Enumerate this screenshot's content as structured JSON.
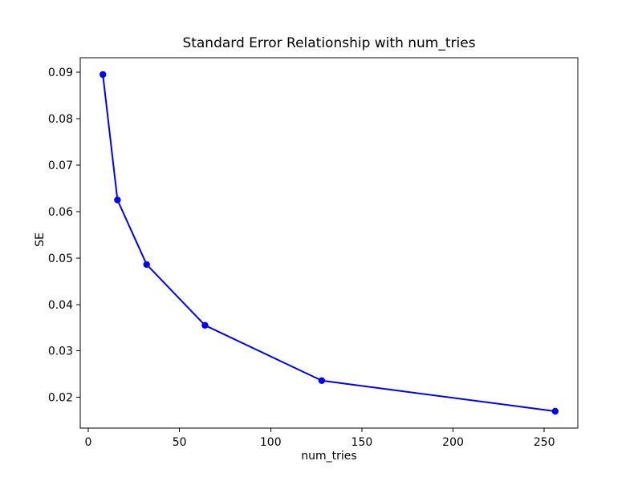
{
  "figure": {
    "background_color": "#ffffff",
    "spine_color": "#000000",
    "text_color": "#000000"
  },
  "chart_data": {
    "type": "line",
    "title": "Standard Error Relationship with num_tries",
    "xlabel": "num_tries",
    "ylabel": "SE",
    "x": [
      8,
      16,
      32,
      64,
      128,
      256
    ],
    "y": [
      0.0895,
      0.0625,
      0.0486,
      0.0355,
      0.0236,
      0.017
    ],
    "series_name": "SE",
    "line_color": "#0000ff",
    "marker": "circle",
    "marker_color": "#0000ff",
    "marker_radius": 4.2,
    "line_width": 2,
    "xlim": [
      -4.4,
      268.4
    ],
    "ylim": [
      0.013375,
      0.093125
    ],
    "xticks": [
      0,
      50,
      100,
      150,
      200,
      250
    ],
    "xtick_labels": [
      "0",
      "50",
      "100",
      "150",
      "200",
      "250"
    ],
    "yticks": [
      0.02,
      0.03,
      0.04,
      0.05,
      0.06,
      0.07,
      0.08,
      0.09
    ],
    "ytick_labels": [
      "0.02",
      "0.03",
      "0.04",
      "0.05",
      "0.06",
      "0.07",
      "0.08",
      "0.09"
    ],
    "grid": false,
    "legend": null
  }
}
